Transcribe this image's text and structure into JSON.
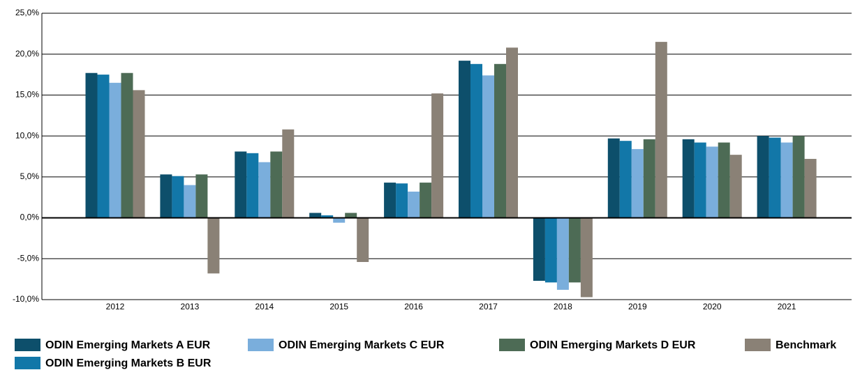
{
  "chart_data": {
    "type": "bar",
    "categories": [
      "2012",
      "2013",
      "2014",
      "2015",
      "2016",
      "2017",
      "2018",
      "2019",
      "2020",
      "2021"
    ],
    "series": [
      {
        "name": "ODIN Emerging Markets A EUR",
        "color": "#0d4f6b",
        "values": [
          17.7,
          5.3,
          8.1,
          0.6,
          4.3,
          19.2,
          -7.7,
          9.7,
          9.6,
          10.0
        ]
      },
      {
        "name": "ODIN Emerging Markets B EUR",
        "color": "#1277a8",
        "values": [
          17.5,
          5.1,
          7.9,
          0.3,
          4.2,
          18.8,
          -7.9,
          9.4,
          9.2,
          9.8
        ]
      },
      {
        "name": "ODIN Emerging Markets C EUR",
        "color": "#7aaedc",
        "values": [
          16.5,
          4.0,
          6.8,
          -0.6,
          3.2,
          17.4,
          -8.8,
          8.4,
          8.7,
          9.2
        ]
      },
      {
        "name": "ODIN Emerging Markets D EUR",
        "color": "#4d6b55",
        "values": [
          17.7,
          5.3,
          8.1,
          0.6,
          4.3,
          18.8,
          -7.9,
          9.6,
          9.2,
          10.0
        ]
      },
      {
        "name": "Benchmark",
        "color": "#8a8176",
        "values": [
          15.6,
          -6.8,
          10.8,
          -5.4,
          15.2,
          20.8,
          -9.7,
          21.5,
          7.7,
          7.2
        ]
      }
    ],
    "ylim": [
      -10,
      25
    ],
    "yticks": [
      {
        "value": -10,
        "label": "-10,0%"
      },
      {
        "value": -5,
        "label": "-5,0%"
      },
      {
        "value": 0,
        "label": "0,0%"
      },
      {
        "value": 5,
        "label": "5,0%"
      },
      {
        "value": 10,
        "label": "10,0%"
      },
      {
        "value": 15,
        "label": "15,0%"
      },
      {
        "value": 20,
        "label": "20,0%"
      },
      {
        "value": 25,
        "label": "25,0%"
      }
    ],
    "grid": true
  }
}
